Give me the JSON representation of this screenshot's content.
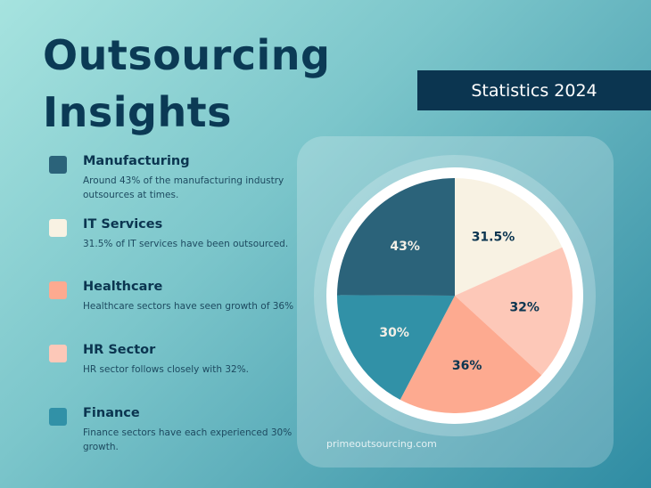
{
  "title_line1": "Outsourcing",
  "title_line2": "Insights",
  "badge": "Statistics 2024",
  "legend": [
    {
      "name": "Manufacturing",
      "desc": "Around 43% of the manufacturing industry outsources at times.",
      "color": "#2b637a"
    },
    {
      "name": "IT Services",
      "desc": "31.5% of IT services have been outsourced.",
      "color": "#f8f2e3"
    },
    {
      "name": "Healthcare",
      "desc": "Healthcare sectors have seen growth of 36%",
      "color": "#fdaa90"
    },
    {
      "name": "HR Sector",
      "desc": "HR sector follows closely with 32%.",
      "color": "#fdc8b8"
    },
    {
      "name": "Finance",
      "desc": "Finance sectors have each experienced 30% growth.",
      "color": "#3191a7"
    }
  ],
  "footer": "primeoutsourcing.com",
  "chart_data": {
    "type": "pie",
    "order_clockwise_from_top": [
      "IT Services",
      "HR Sector",
      "Healthcare",
      "Finance",
      "Manufacturing"
    ],
    "categories": [
      "IT Services",
      "HR Sector",
      "Healthcare",
      "Finance",
      "Manufacturing"
    ],
    "values": [
      31.5,
      32,
      36,
      30,
      43
    ],
    "labels": [
      "31.5%",
      "32%",
      "36%",
      "30%",
      "43%"
    ],
    "colors": [
      "#f8f2e3",
      "#fdc8b8",
      "#fdaa90",
      "#3191a7",
      "#2b637a"
    ],
    "label_colors": [
      "#0b3550",
      "#0b3550",
      "#0b3550",
      "#f3efe6",
      "#f3efe6"
    ]
  }
}
